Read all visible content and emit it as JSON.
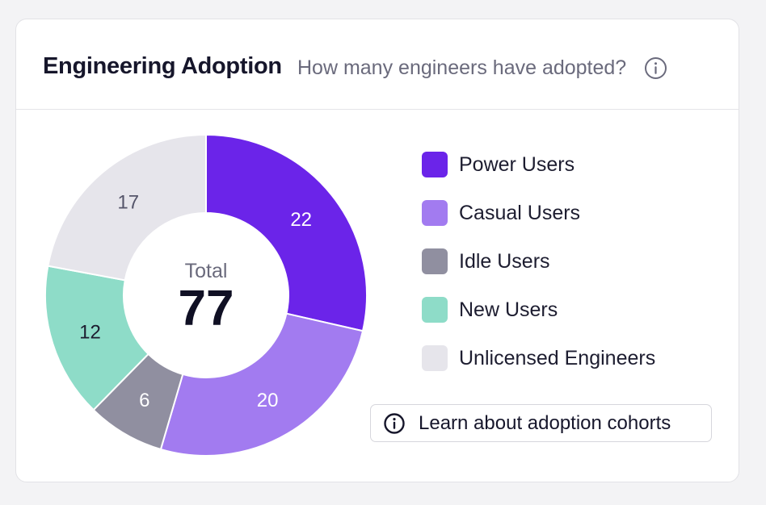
{
  "header": {
    "title": "Engineering Adoption",
    "subtitle": "How many engineers have adopted?",
    "info_icon": "info-circle-icon"
  },
  "chart_data": {
    "type": "pie",
    "donut": true,
    "center_label": "Total",
    "total": "77",
    "categories": [
      "Power Users",
      "Casual Users",
      "Idle Users",
      "New Users",
      "Unlicensed Engineers"
    ],
    "values": [
      22,
      20,
      6,
      12,
      17
    ],
    "colors": [
      "#6b24e9",
      "#a27bf0",
      "#908fa0",
      "#8edcc8",
      "#e6e5eb"
    ],
    "label_colors": [
      "#ffffff",
      "#ffffff",
      "#ffffff",
      "#1d1d30",
      "#55556a"
    ],
    "legend_position": "right"
  },
  "legend": {
    "items": [
      {
        "label": "Power Users",
        "color": "#6b24e9"
      },
      {
        "label": "Casual Users",
        "color": "#a27bf0"
      },
      {
        "label": "Idle Users",
        "color": "#908fa0"
      },
      {
        "label": "New Users",
        "color": "#8edcc8"
      },
      {
        "label": "Unlicensed Engineers",
        "color": "#e6e5eb"
      }
    ]
  },
  "learn_button": {
    "label": "Learn about adoption cohorts",
    "icon": "info-circle-icon"
  }
}
